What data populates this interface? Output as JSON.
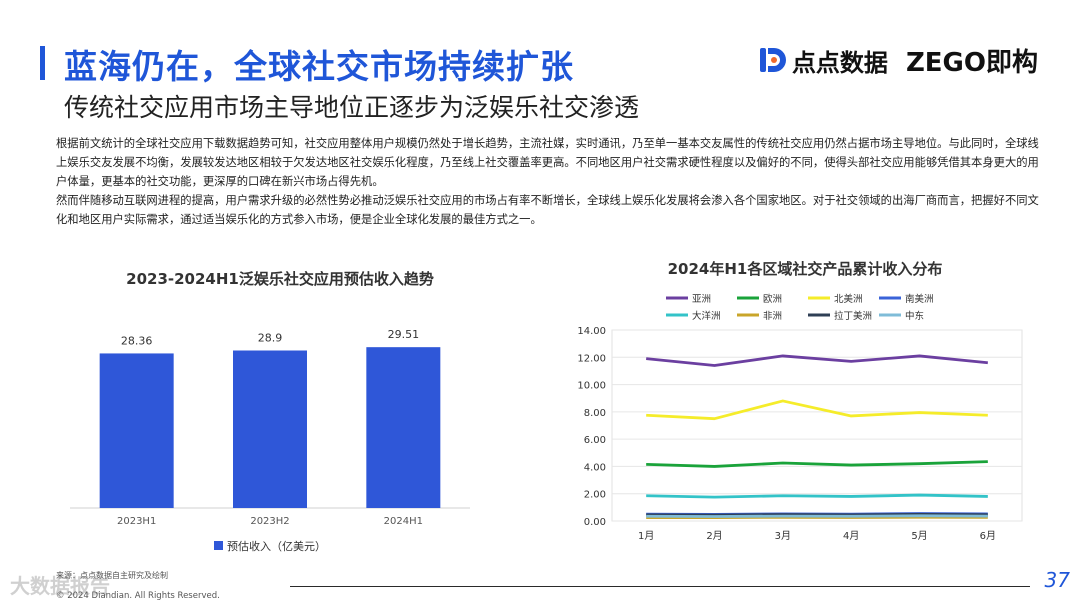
{
  "header": {
    "title": "蓝海仍在，全球社交市场持续扩张",
    "subtitle": "传统社交应用市场主导地位正逐步为泛娱乐社交渗透",
    "logo_left_text": "点点数据",
    "logo_right_text": "ZEGO即构"
  },
  "body": {
    "paragraph1": "根据前文统计的全球社交应用下载数据趋势可知，社交应用整体用户规模仍然处于增长趋势，主流社媒，实时通讯，乃至单一基本交友属性的传统社交应用仍然占据市场主导地位。与此同时，全球线上娱乐交友发展不均衡，发展较发达地区相较于欠发达地区社交娱乐化程度，乃至线上社交覆盖率更高。不同地区用户社交需求硬性程度以及偏好的不同，使得头部社交应用能够凭借其本身更大的用户体量，更基本的社交功能，更深厚的口碑在新兴市场占得先机。",
    "paragraph2": "然而伴随移动互联网进程的提高，用户需求升级的必然性势必推动泛娱乐社交应用的市场占有率不断增长，全球线上娱乐化发展将会渗入各个国家地区。对于社交领域的出海厂商而言，把握好不同文化和地区用户实际需求，通过适当娱乐化的方式参入市场，便是企业全球化发展的最佳方式之一。"
  },
  "chart_data": [
    {
      "type": "bar",
      "title": "2023-2024H1泛娱乐社交应用预估收入趋势",
      "categories": [
        "2023H1",
        "2023H2",
        "2024H1"
      ],
      "series": [
        {
          "name": "预估收入（亿美元）",
          "values": [
            28.36,
            28.9,
            29.51
          ]
        }
      ],
      "data_labels": [
        "28.36",
        "28.9",
        "29.51"
      ],
      "color": "#2f57d8",
      "legend_position": "bottom"
    },
    {
      "type": "line",
      "title": "2024年H1各区域社交产品累计收入分布",
      "categories": [
        "1月",
        "2月",
        "3月",
        "4月",
        "5月",
        "6月"
      ],
      "ylim": [
        0,
        14
      ],
      "yticks": [
        "0.00",
        "2.00",
        "4.00",
        "6.00",
        "8.00",
        "10.00",
        "12.00",
        "14.00"
      ],
      "grid": true,
      "legend_position": "top",
      "series": [
        {
          "name": "亚洲",
          "color": "#6b3fa0",
          "values": [
            11.9,
            11.4,
            12.1,
            11.7,
            12.1,
            11.6
          ]
        },
        {
          "name": "欧洲",
          "color": "#1aa33a",
          "values": [
            4.15,
            4.0,
            4.25,
            4.1,
            4.2,
            4.35
          ]
        },
        {
          "name": "北美洲",
          "color": "#f5ec2a",
          "values": [
            7.75,
            7.5,
            8.8,
            7.7,
            7.95,
            7.75
          ]
        },
        {
          "name": "南美洲",
          "color": "#3a63d8",
          "values": [
            0.5,
            0.48,
            0.52,
            0.5,
            0.55,
            0.52
          ]
        },
        {
          "name": "大洋洲",
          "color": "#33c3c8",
          "values": [
            1.85,
            1.75,
            1.85,
            1.8,
            1.9,
            1.8
          ]
        },
        {
          "name": "非洲",
          "color": "#c9a52a",
          "values": [
            0.25,
            0.25,
            0.27,
            0.26,
            0.28,
            0.27
          ]
        },
        {
          "name": "拉丁美洲",
          "color": "#2f3f55",
          "values": [
            0.45,
            0.43,
            0.47,
            0.45,
            0.48,
            0.46
          ]
        },
        {
          "name": "中东",
          "color": "#7fbcd8",
          "values": [
            0.35,
            0.33,
            0.36,
            0.35,
            0.38,
            0.36
          ]
        }
      ]
    }
  ],
  "footer": {
    "source": "来源：点点数据自主研究及绘制",
    "copyright": "© 2024 Diandian. All Rights Reserved.",
    "watermark": "大数据报告",
    "page_number": "37"
  },
  "colors": {
    "accent": "#1f56d8"
  }
}
